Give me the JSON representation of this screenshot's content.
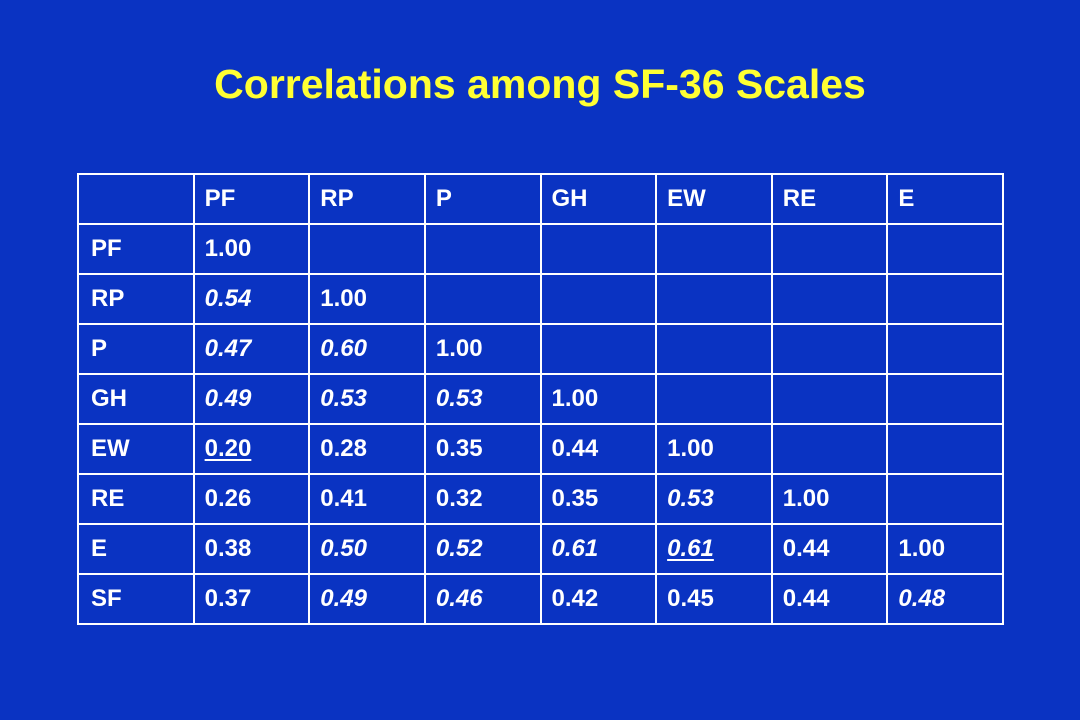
{
  "slide": {
    "title": "Correlations among SF-36 Scales"
  },
  "table": {
    "columns": [
      "PF",
      "RP",
      "P",
      "GH",
      "EW",
      "RE",
      "E"
    ],
    "rows": [
      {
        "label": "PF",
        "cells": [
          {
            "value": "1.00",
            "italic": false,
            "underline": false
          }
        ]
      },
      {
        "label": "RP",
        "cells": [
          {
            "value": "0.54",
            "italic": true,
            "underline": false
          },
          {
            "value": "1.00",
            "italic": false,
            "underline": false
          }
        ]
      },
      {
        "label": "P",
        "cells": [
          {
            "value": "0.47",
            "italic": true,
            "underline": false
          },
          {
            "value": "0.60",
            "italic": true,
            "underline": false
          },
          {
            "value": "1.00",
            "italic": false,
            "underline": false
          }
        ]
      },
      {
        "label": "GH",
        "cells": [
          {
            "value": "0.49",
            "italic": true,
            "underline": false
          },
          {
            "value": "0.53",
            "italic": true,
            "underline": false
          },
          {
            "value": "0.53",
            "italic": true,
            "underline": false
          },
          {
            "value": "1.00",
            "italic": false,
            "underline": false
          }
        ]
      },
      {
        "label": "EW",
        "cells": [
          {
            "value": "0.20",
            "italic": false,
            "underline": true
          },
          {
            "value": "0.28",
            "italic": false,
            "underline": false
          },
          {
            "value": "0.35",
            "italic": false,
            "underline": false
          },
          {
            "value": "0.44",
            "italic": false,
            "underline": false
          },
          {
            "value": "1.00",
            "italic": false,
            "underline": false
          }
        ]
      },
      {
        "label": "RE",
        "cells": [
          {
            "value": "0.26",
            "italic": false,
            "underline": false
          },
          {
            "value": "0.41",
            "italic": false,
            "underline": false
          },
          {
            "value": "0.32",
            "italic": false,
            "underline": false
          },
          {
            "value": "0.35",
            "italic": false,
            "underline": false
          },
          {
            "value": "0.53",
            "italic": true,
            "underline": false
          },
          {
            "value": "1.00",
            "italic": false,
            "underline": false
          }
        ]
      },
      {
        "label": "E",
        "cells": [
          {
            "value": "0.38",
            "italic": false,
            "underline": false
          },
          {
            "value": "0.50",
            "italic": true,
            "underline": false
          },
          {
            "value": "0.52",
            "italic": true,
            "underline": false
          },
          {
            "value": "0.61",
            "italic": true,
            "underline": false
          },
          {
            "value": "0.61",
            "italic": true,
            "underline": true
          },
          {
            "value": "0.44",
            "italic": false,
            "underline": false
          },
          {
            "value": "1.00",
            "italic": false,
            "underline": false
          }
        ]
      },
      {
        "label": "SF",
        "cells": [
          {
            "value": "0.37",
            "italic": false,
            "underline": false
          },
          {
            "value": "0.49",
            "italic": true,
            "underline": false
          },
          {
            "value": "0.46",
            "italic": true,
            "underline": false
          },
          {
            "value": "0.42",
            "italic": false,
            "underline": false
          },
          {
            "value": "0.45",
            "italic": false,
            "underline": false
          },
          {
            "value": "0.44",
            "italic": false,
            "underline": false
          },
          {
            "value": "0.48",
            "italic": true,
            "underline": false
          }
        ]
      }
    ]
  },
  "colors": {
    "background": "#0a33c2",
    "title": "#ffff33",
    "text": "#ffffff",
    "border": "#ffffff"
  }
}
